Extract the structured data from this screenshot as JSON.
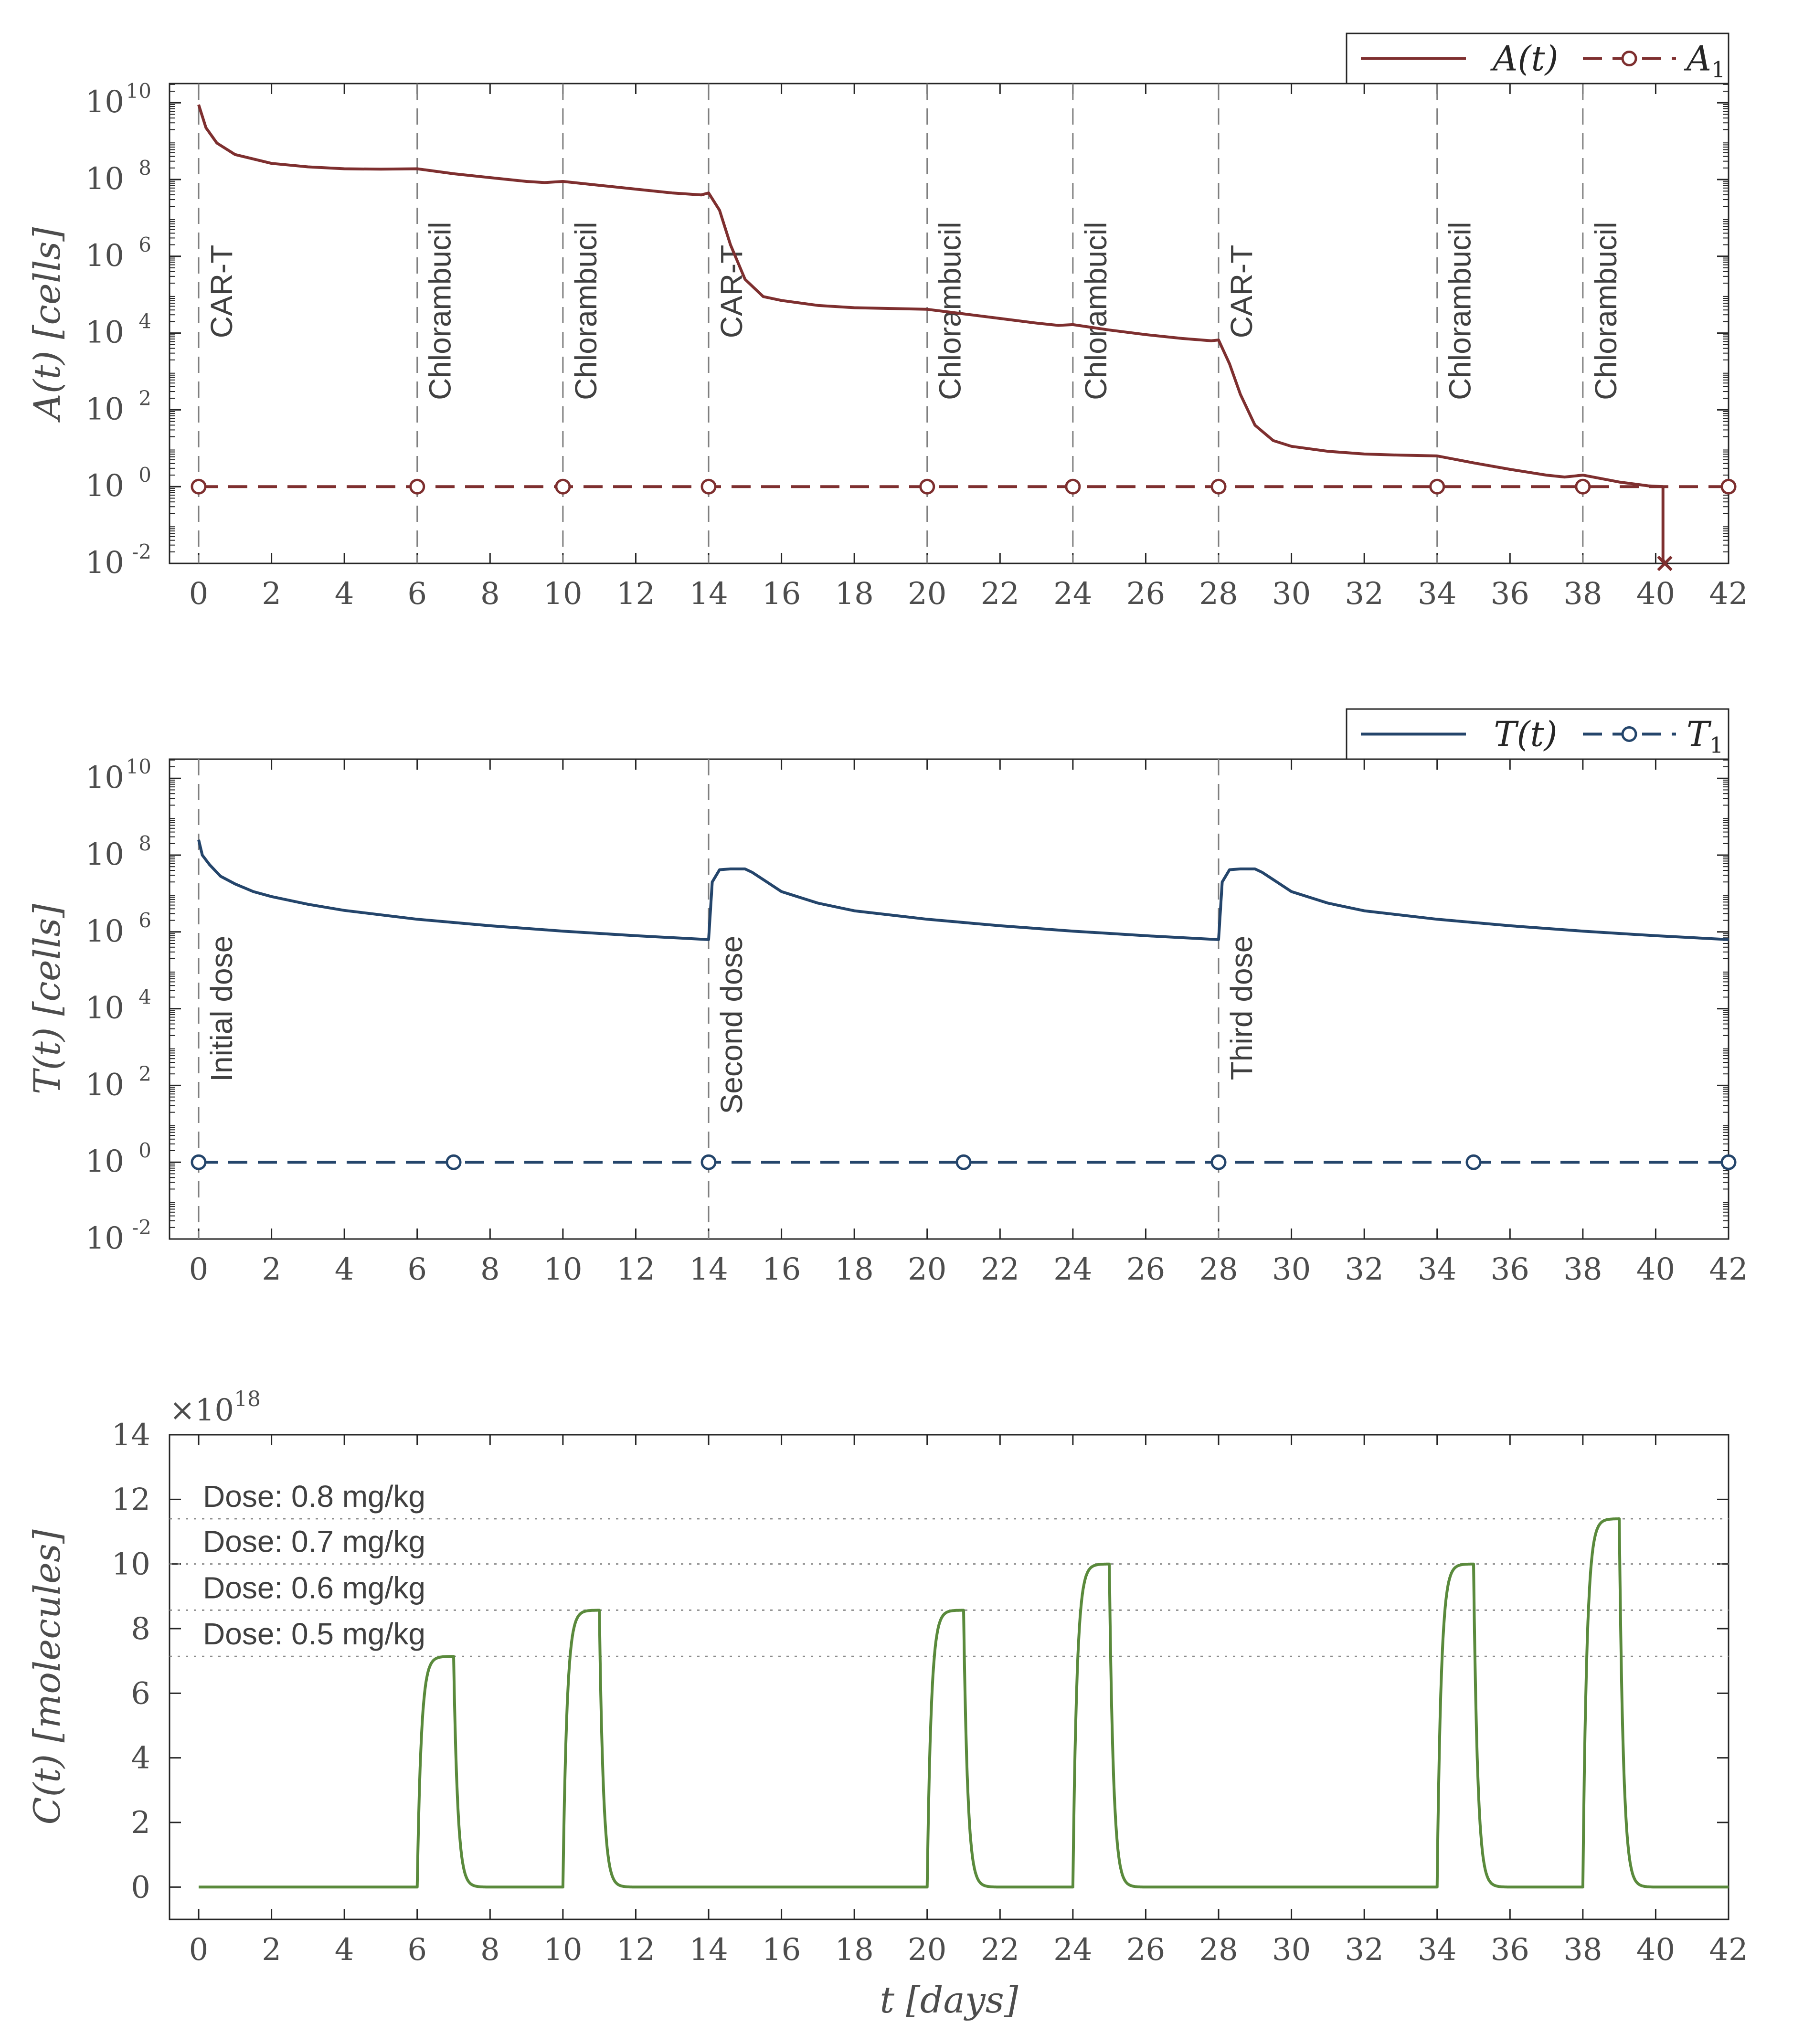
{
  "chart_data": [
    {
      "type": "line",
      "yscale": "log",
      "ylabel": "A(t) [cells]",
      "xlim": [
        -0.8,
        42
      ],
      "ylim_exp": [
        -2,
        10.5
      ],
      "xticks": [
        "0",
        "2",
        "4",
        "6",
        "8",
        "10",
        "12",
        "14",
        "16",
        "18",
        "20",
        "22",
        "24",
        "26",
        "28",
        "30",
        "32",
        "34",
        "36",
        "38",
        "40",
        "42"
      ],
      "ytick_exps": [
        "-2",
        "0",
        "2",
        "4",
        "6",
        "8",
        "10"
      ],
      "ytick_base": "10",
      "vlines": [
        0,
        6,
        10,
        14,
        20,
        24,
        28,
        34,
        38
      ],
      "annotations": [
        "CAR-T",
        "Chlorambucil",
        "Chlorambucil",
        "CAR-T",
        "Chlorambucil",
        "Chlorambucil",
        "CAR-T",
        "Chlorambucil",
        "Chlorambucil"
      ],
      "legend": [
        "A(t)",
        "A1"
      ],
      "legend_position": "top-right",
      "color": "#7e2f2f",
      "series": [
        {
          "name": "A(t)",
          "x": [
            0,
            0.2,
            0.5,
            1,
            2,
            3,
            4,
            5,
            6,
            7,
            8,
            9,
            9.5,
            10,
            11,
            12,
            13,
            13.8,
            14,
            14.3,
            14.6,
            15,
            15.5,
            16,
            17,
            18,
            20,
            21,
            22,
            23,
            23.6,
            24,
            25,
            26,
            27,
            27.8,
            28,
            28.3,
            28.6,
            29,
            29.5,
            30,
            31,
            32,
            33,
            34,
            35,
            36,
            37,
            37.5,
            38,
            39,
            39.8,
            40.2,
            40.2,
            40.25
          ],
          "log10_y": [
            9.95,
            9.35,
            8.95,
            8.65,
            8.42,
            8.33,
            8.28,
            8.27,
            8.28,
            8.15,
            8.05,
            7.95,
            7.92,
            7.95,
            7.85,
            7.75,
            7.65,
            7.6,
            7.65,
            7.2,
            6.3,
            5.4,
            4.95,
            4.85,
            4.72,
            4.66,
            4.62,
            4.5,
            4.38,
            4.26,
            4.2,
            4.22,
            4.08,
            3.96,
            3.86,
            3.8,
            3.82,
            3.2,
            2.4,
            1.6,
            1.2,
            1.05,
            0.92,
            0.85,
            0.82,
            0.8,
            0.62,
            0.45,
            0.3,
            0.25,
            0.3,
            0.12,
            0.02,
            0.0,
            -1.9,
            -2
          ]
        },
        {
          "name": "A1",
          "x": [
            0,
            6,
            10,
            14,
            20,
            24,
            28,
            34,
            38,
            42
          ],
          "log10_y": [
            0,
            0,
            0,
            0,
            0,
            0,
            0,
            0,
            0,
            0
          ]
        }
      ]
    },
    {
      "type": "line",
      "yscale": "log",
      "ylabel": "T(t) [cells]",
      "xlim": [
        -0.8,
        42
      ],
      "ylim_exp": [
        -2,
        10.5
      ],
      "xticks": [
        "0",
        "2",
        "4",
        "6",
        "8",
        "10",
        "12",
        "14",
        "16",
        "18",
        "20",
        "22",
        "24",
        "26",
        "28",
        "30",
        "32",
        "34",
        "36",
        "38",
        "40",
        "42"
      ],
      "ytick_exps": [
        "-2",
        "0",
        "2",
        "4",
        "6",
        "8",
        "10"
      ],
      "ytick_base": "10",
      "vlines": [
        0,
        14,
        28
      ],
      "annotations": [
        "Initial dose",
        "Second dose",
        "Third dose"
      ],
      "legend": [
        "T(t)",
        "T1"
      ],
      "legend_position": "top-right",
      "color": "#24456b",
      "series": [
        {
          "name": "T(t)",
          "x": [
            0,
            0.1,
            0.3,
            0.6,
            1,
            1.5,
            2,
            3,
            4,
            6,
            8,
            10,
            12,
            13.99,
            14,
            14.1,
            14.3,
            14.6,
            15,
            15.2,
            15.6,
            16,
            17,
            18,
            20,
            22,
            24,
            26,
            27.99,
            28,
            28.1,
            28.3,
            28.6,
            29,
            29.2,
            29.6,
            30,
            31,
            32,
            34,
            36,
            38,
            40,
            42
          ],
          "log10_y": [
            8.4,
            8.0,
            7.75,
            7.45,
            7.25,
            7.05,
            6.92,
            6.72,
            6.56,
            6.33,
            6.16,
            6.02,
            5.9,
            5.8,
            5.8,
            7.3,
            7.62,
            7.64,
            7.64,
            7.55,
            7.3,
            7.05,
            6.75,
            6.55,
            6.33,
            6.16,
            6.02,
            5.9,
            5.8,
            5.8,
            7.3,
            7.62,
            7.64,
            7.64,
            7.55,
            7.3,
            7.05,
            6.75,
            6.55,
            6.33,
            6.16,
            6.02,
            5.9,
            5.8
          ]
        },
        {
          "name": "T1",
          "x": [
            0,
            7,
            14,
            21,
            28,
            35,
            42
          ],
          "log10_y": [
            0,
            0,
            0,
            0,
            0,
            0,
            0
          ]
        }
      ]
    },
    {
      "type": "line",
      "yscale": "linear",
      "ylabel": "C(t) [molecules]",
      "xlabel": "t [days]",
      "xlim": [
        -0.8,
        42
      ],
      "ylim": [
        -1,
        14
      ],
      "multiplier": "×10",
      "multiplier_exp": "18",
      "xticks": [
        "0",
        "2",
        "4",
        "6",
        "8",
        "10",
        "12",
        "14",
        "16",
        "18",
        "20",
        "22",
        "24",
        "26",
        "28",
        "30",
        "32",
        "34",
        "36",
        "38",
        "40",
        "42"
      ],
      "yticks": [
        "0",
        "2",
        "4",
        "6",
        "8",
        "10",
        "12",
        "14"
      ],
      "hlines": [
        {
          "y": 11.4,
          "label": "Dose: 0.8 mg/kg"
        },
        {
          "y": 10.0,
          "label": "Dose: 0.7 mg/kg"
        },
        {
          "y": 8.57,
          "label": "Dose: 0.6 mg/kg"
        },
        {
          "y": 7.14,
          "label": "Dose: 0.5 mg/kg"
        }
      ],
      "color": "#5a8a3c",
      "pulses": [
        {
          "start": 6,
          "peak": 7.14
        },
        {
          "start": 10,
          "peak": 8.57
        },
        {
          "start": 20,
          "peak": 8.57
        },
        {
          "start": 24,
          "peak": 10.0
        },
        {
          "start": 34,
          "peak": 10.0
        },
        {
          "start": 38,
          "peak": 11.4
        }
      ]
    }
  ]
}
